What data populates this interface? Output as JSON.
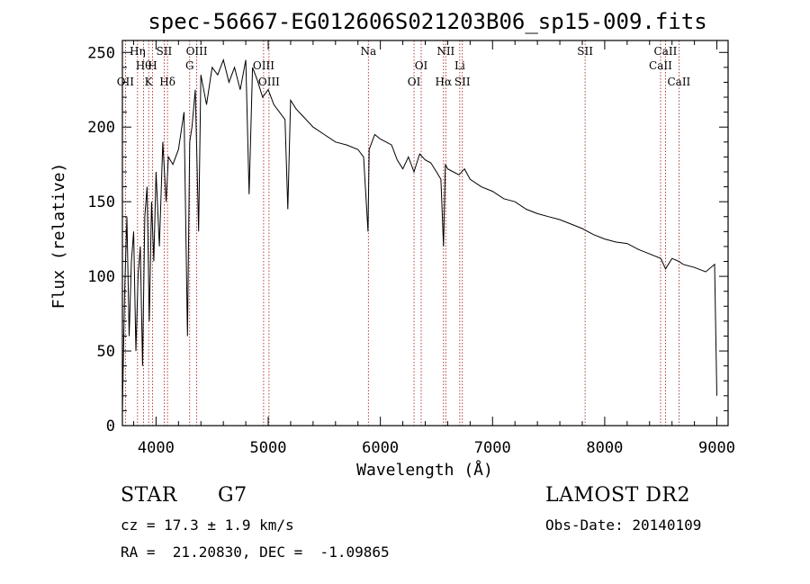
{
  "chart_data": {
    "type": "line",
    "title": "spec-56667-EG012606S021203B06_sp15-009.fits",
    "xlabel": "Wavelength (Å)",
    "ylabel": "Flux (relative)",
    "xlim": [
      3700,
      9100
    ],
    "ylim": [
      0,
      258
    ],
    "xticks": [
      4000,
      5000,
      6000,
      7000,
      8000,
      9000
    ],
    "yticks": [
      0,
      50,
      100,
      150,
      200,
      250
    ],
    "grid": false,
    "series": [
      {
        "x": [
          3700,
          3720,
          3740,
          3760,
          3780,
          3800,
          3820,
          3840,
          3860,
          3880,
          3900,
          3920,
          3940,
          3960,
          3980,
          4000,
          4030,
          4060,
          4090,
          4110,
          4150,
          4200,
          4250,
          4280,
          4300,
          4320,
          4350,
          4380,
          4400,
          4450,
          4500,
          4550,
          4600,
          4650,
          4700,
          4750,
          4800,
          4830,
          4860,
          4900,
          4950,
          5000,
          5050,
          5100,
          5150,
          5175,
          5200,
          5250,
          5300,
          5400,
          5500,
          5600,
          5700,
          5800,
          5850,
          5890,
          5900,
          5950,
          6000,
          6100,
          6150,
          6200,
          6250,
          6300,
          6350,
          6400,
          6450,
          6500,
          6540,
          6563,
          6580,
          6600,
          6650,
          6700,
          6750,
          6800,
          6900,
          7000,
          7100,
          7200,
          7300,
          7400,
          7500,
          7600,
          7700,
          7800,
          7900,
          8000,
          8100,
          8200,
          8300,
          8400,
          8500,
          8542,
          8600,
          8662,
          8700,
          8800,
          8900,
          8980,
          9000
        ],
        "y": [
          10,
          90,
          140,
          60,
          110,
          130,
          50,
          100,
          120,
          40,
          140,
          160,
          70,
          150,
          110,
          170,
          120,
          190,
          150,
          180,
          175,
          185,
          210,
          60,
          190,
          200,
          225,
          130,
          235,
          215,
          240,
          235,
          245,
          230,
          240,
          225,
          245,
          155,
          240,
          232,
          220,
          225,
          215,
          210,
          205,
          145,
          218,
          212,
          208,
          200,
          195,
          190,
          188,
          185,
          180,
          130,
          185,
          195,
          192,
          188,
          178,
          172,
          180,
          170,
          182,
          178,
          176,
          170,
          165,
          120,
          175,
          172,
          170,
          168,
          172,
          165,
          160,
          157,
          152,
          150,
          145,
          142,
          140,
          138,
          135,
          132,
          128,
          125,
          123,
          122,
          118,
          115,
          112,
          105,
          112,
          110,
          108,
          106,
          103,
          108,
          20
        ]
      }
    ],
    "lines": [
      {
        "wl": 3727,
        "label": "OII",
        "row": 3
      },
      {
        "wl": 3835,
        "label": "Hη",
        "row": 1
      },
      {
        "wl": 3889,
        "label": "Hθ",
        "row": 2
      },
      {
        "wl": 3934,
        "label": "K",
        "row": 3
      },
      {
        "wl": 3969,
        "label": "H",
        "row": 2
      },
      {
        "wl": 4072,
        "label": "SII",
        "row": 1
      },
      {
        "wl": 4102,
        "label": "Hδ",
        "row": 3
      },
      {
        "wl": 4300,
        "label": "G",
        "row": 2
      },
      {
        "wl": 4363,
        "label": "OIII",
        "row": 1
      },
      {
        "wl": 4959,
        "label": "OIII",
        "row": 2
      },
      {
        "wl": 5007,
        "label": "OIII",
        "row": 3
      },
      {
        "wl": 5893,
        "label": "Na",
        "row": 1
      },
      {
        "wl": 6300,
        "label": "OI",
        "row": 3
      },
      {
        "wl": 6364,
        "label": "OI",
        "row": 2
      },
      {
        "wl": 6563,
        "label": "Hα",
        "row": 3
      },
      {
        "wl": 6583,
        "label": "NII",
        "row": 1
      },
      {
        "wl": 6708,
        "label": "Li",
        "row": 2
      },
      {
        "wl": 6731,
        "label": "SII",
        "row": 3
      },
      {
        "wl": 7825,
        "label": "SII",
        "row": 1
      },
      {
        "wl": 8498,
        "label": "CaII",
        "row": 2
      },
      {
        "wl": 8542,
        "label": "CaII",
        "row": 1
      },
      {
        "wl": 8662,
        "label": "CaII",
        "row": 3
      }
    ]
  },
  "info": {
    "class": "STAR",
    "subclass": "G7",
    "survey": "LAMOST DR2",
    "cz": "cz = 17.3 ± 1.9 km/s",
    "obsdate": "Obs-Date: 20140109",
    "radec": "RA =  21.20830, DEC =  -1.09865"
  }
}
